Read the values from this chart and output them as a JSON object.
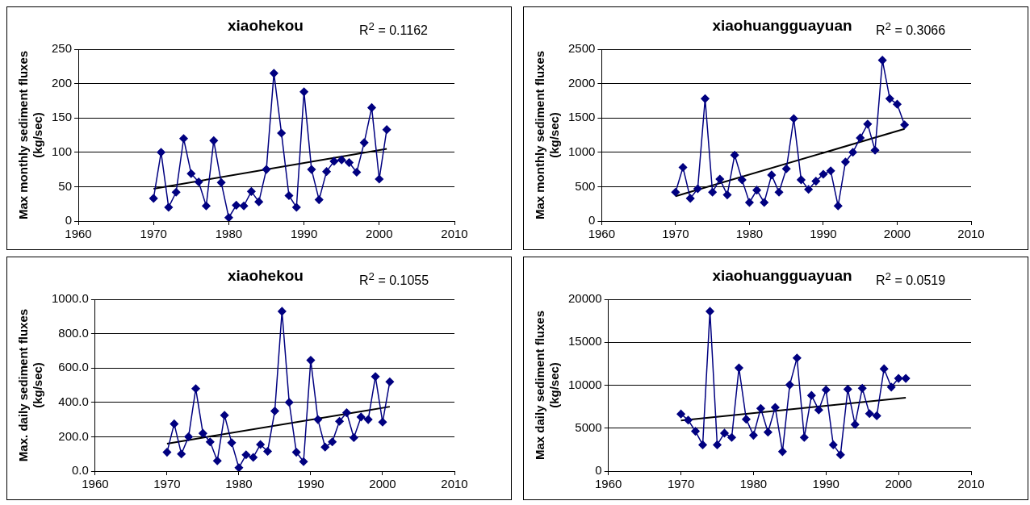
{
  "chart_data": [
    {
      "type": "line",
      "title": "xiaohekou",
      "ylabel": "Max monthly sediment fluxes\n(kg/sec)",
      "annotations": [
        "R$^{2}$ = 0.1162"
      ],
      "xlim": [
        1960,
        2010
      ],
      "xticks": [
        1960,
        1970,
        1980,
        1990,
        2000,
        2010
      ],
      "ylim": [
        0,
        250
      ],
      "yticks": [
        0,
        50,
        100,
        150,
        200,
        250
      ],
      "grid": "y",
      "legend": false,
      "marker": "diamond",
      "series": [
        {
          "color": "#000080",
          "x": [
            1970,
            1971,
            1972,
            1973,
            1974,
            1975,
            1976,
            1977,
            1978,
            1979,
            1980,
            1981,
            1982,
            1983,
            1984,
            1985,
            1986,
            1987,
            1988,
            1989,
            1990,
            1991,
            1992,
            1993,
            1994,
            1995,
            1996,
            1997,
            1998,
            1999,
            2000,
            2001
          ],
          "values": [
            33,
            100,
            20,
            42,
            120,
            69,
            57,
            22,
            117,
            56,
            5,
            23,
            22,
            43,
            28,
            75,
            215,
            128,
            37,
            20,
            188,
            75,
            31,
            72,
            87,
            89,
            85,
            71,
            114,
            165,
            61,
            133
          ]
        },
        {
          "type": "line",
          "marker": "none",
          "color": "#000000",
          "x": [
            1970,
            2001
          ],
          "values": [
            47,
            105
          ]
        }
      ]
    },
    {
      "type": "line",
      "title": "xiaohuangguayuan",
      "ylabel": "Max monthly sediment fluxes\n(kg/sec)",
      "annotations": [
        "R$^{2}$ = 0.3066"
      ],
      "xlim": [
        1960,
        2010
      ],
      "xticks": [
        1960,
        1970,
        1980,
        1990,
        2000,
        2010
      ],
      "ylim": [
        0,
        2500
      ],
      "yticks": [
        0,
        500,
        1000,
        1500,
        2000,
        2500
      ],
      "grid": "y",
      "legend": false,
      "marker": "diamond",
      "series": [
        {
          "color": "#000080",
          "x": [
            1970,
            1971,
            1972,
            1973,
            1974,
            1975,
            1976,
            1977,
            1978,
            1979,
            1980,
            1981,
            1982,
            1983,
            1984,
            1985,
            1986,
            1987,
            1988,
            1989,
            1990,
            1991,
            1992,
            1993,
            1994,
            1995,
            1996,
            1997,
            1998,
            1999,
            2000,
            2001
          ],
          "values": [
            420,
            780,
            330,
            470,
            1780,
            420,
            610,
            380,
            960,
            600,
            270,
            450,
            270,
            670,
            420,
            760,
            1490,
            600,
            460,
            580,
            680,
            730,
            220,
            860,
            1000,
            1210,
            1410,
            1030,
            2340,
            1780,
            1700,
            1400
          ]
        },
        {
          "type": "line",
          "marker": "none",
          "color": "#000000",
          "x": [
            1970,
            2001
          ],
          "values": [
            360,
            1340
          ]
        }
      ]
    },
    {
      "type": "line",
      "title": "xiaohekou",
      "ylabel": "Max. daily sediment fluxes\n(kg/sec)",
      "annotations": [
        "R$^{2}$ = 0.1055"
      ],
      "xlim": [
        1960,
        2010
      ],
      "xticks": [
        1960,
        1970,
        1980,
        1990,
        2000,
        2010
      ],
      "ylim": [
        0,
        1000
      ],
      "yticks": [
        {
          "value": 0,
          "label": "0.0"
        },
        {
          "value": 200,
          "label": "200.0"
        },
        {
          "value": 400,
          "label": "400.0"
        },
        {
          "value": 600,
          "label": "600.0"
        },
        {
          "value": 800,
          "label": "800.0"
        },
        {
          "value": 1000,
          "label": "1000.0"
        }
      ],
      "grid": "y",
      "legend": false,
      "marker": "diamond",
      "series": [
        {
          "color": "#000080",
          "x": [
            1970,
            1971,
            1972,
            1973,
            1974,
            1975,
            1976,
            1977,
            1978,
            1979,
            1980,
            1981,
            1982,
            1983,
            1984,
            1985,
            1986,
            1987,
            1988,
            1989,
            1990,
            1991,
            1992,
            1993,
            1994,
            1995,
            1996,
            1997,
            1998,
            1999,
            2000,
            2001
          ],
          "values": [
            110,
            275,
            100,
            200,
            480,
            220,
            170,
            60,
            325,
            165,
            20,
            95,
            80,
            155,
            115,
            350,
            930,
            400,
            110,
            55,
            645,
            300,
            140,
            170,
            290,
            340,
            195,
            315,
            300,
            550,
            285,
            520
          ]
        },
        {
          "type": "line",
          "marker": "none",
          "color": "#000000",
          "x": [
            1970,
            2001
          ],
          "values": [
            160,
            375
          ]
        }
      ]
    },
    {
      "type": "line",
      "title": "xiaohuangguayuan",
      "ylabel": "Max daily sediment fluxes\n(kg/sec)",
      "annotations": [
        "R$^{2}$ = 0.0519"
      ],
      "xlim": [
        1960,
        2010
      ],
      "xticks": [
        1960,
        1970,
        1980,
        1990,
        2000,
        2010
      ],
      "ylim": [
        0,
        20000
      ],
      "yticks": [
        0,
        5000,
        10000,
        15000,
        20000
      ],
      "grid": "y",
      "legend": false,
      "marker": "diamond",
      "series": [
        {
          "color": "#000080",
          "x": [
            1970,
            1971,
            1972,
            1973,
            1974,
            1975,
            1976,
            1977,
            1978,
            1979,
            1980,
            1981,
            1982,
            1983,
            1984,
            1985,
            1986,
            1987,
            1988,
            1989,
            1990,
            1991,
            1992,
            1993,
            1994,
            1995,
            1996,
            1997,
            1998,
            1999,
            2000,
            2001
          ],
          "values": [
            6650,
            5940,
            4640,
            3060,
            18600,
            3060,
            4420,
            3920,
            12010,
            6040,
            4170,
            7300,
            4530,
            7410,
            2270,
            10040,
            13170,
            3920,
            8810,
            7120,
            9460,
            3060,
            1910,
            9530,
            5430,
            9640,
            6690,
            6440,
            11910,
            9780,
            10790,
            10790
          ]
        },
        {
          "type": "line",
          "marker": "none",
          "color": "#000000",
          "x": [
            1970,
            2001
          ],
          "values": [
            5900,
            8550
          ]
        }
      ]
    }
  ]
}
